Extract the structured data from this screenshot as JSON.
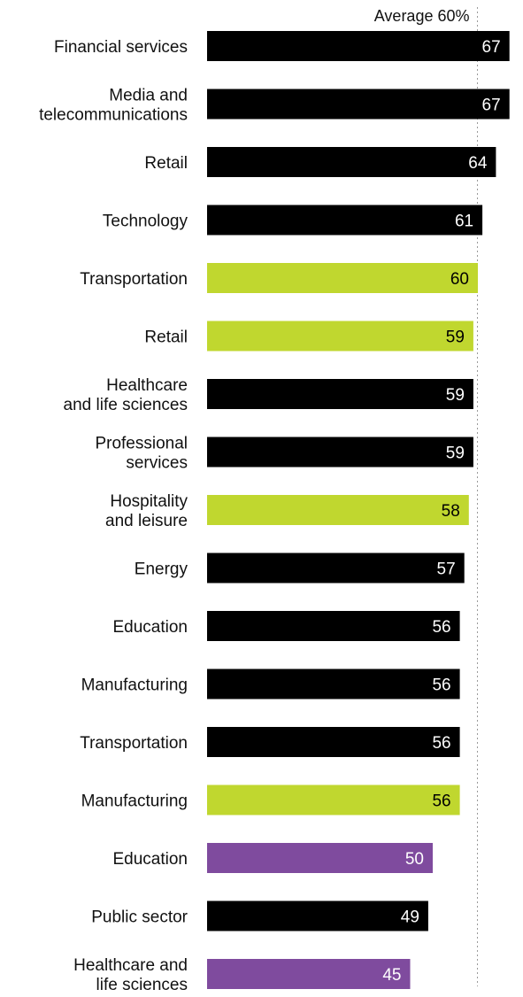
{
  "chart_data": {
    "type": "bar",
    "orientation": "horizontal",
    "categories": [
      "Financial services",
      "Media and\ntelecommunications",
      "Retail",
      "Technology",
      "Transportation",
      "Retail",
      "Healthcare\nand life sciences",
      "Professional\nservices",
      "Hospitality\nand leisure",
      "Energy",
      "Education",
      "Manufacturing",
      "Transportation",
      "Manufacturing",
      "Education",
      "Public sector",
      "Healthcare and\nlife sciences"
    ],
    "values": [
      67,
      67,
      64,
      61,
      60,
      59,
      59,
      59,
      58,
      57,
      56,
      56,
      56,
      56,
      50,
      49,
      45
    ],
    "data_labels": [
      "67",
      "67",
      "64",
      "61",
      "60",
      "59",
      "59",
      "59",
      "58",
      "57",
      "56",
      "56",
      "56",
      "56",
      "50",
      "49",
      "45"
    ],
    "bar_colors": [
      "#000000",
      "#000000",
      "#000000",
      "#000000",
      "#c0d72f",
      "#c0d72f",
      "#000000",
      "#000000",
      "#c0d72f",
      "#000000",
      "#000000",
      "#000000",
      "#000000",
      "#c0d72f",
      "#7f4b9e",
      "#000000",
      "#7f4b9e"
    ],
    "label_colors": [
      "#ffffff",
      "#ffffff",
      "#ffffff",
      "#ffffff",
      "#000000",
      "#000000",
      "#ffffff",
      "#ffffff",
      "#000000",
      "#ffffff",
      "#ffffff",
      "#ffffff",
      "#ffffff",
      "#000000",
      "#ffffff",
      "#ffffff",
      "#ffffff"
    ],
    "reference_line": {
      "value": 60,
      "label": "Average 60%",
      "style": "dotted"
    },
    "xlim": [
      0,
      67
    ],
    "grid": false,
    "legend": "none",
    "title": "",
    "xlabel": "",
    "ylabel": ""
  }
}
